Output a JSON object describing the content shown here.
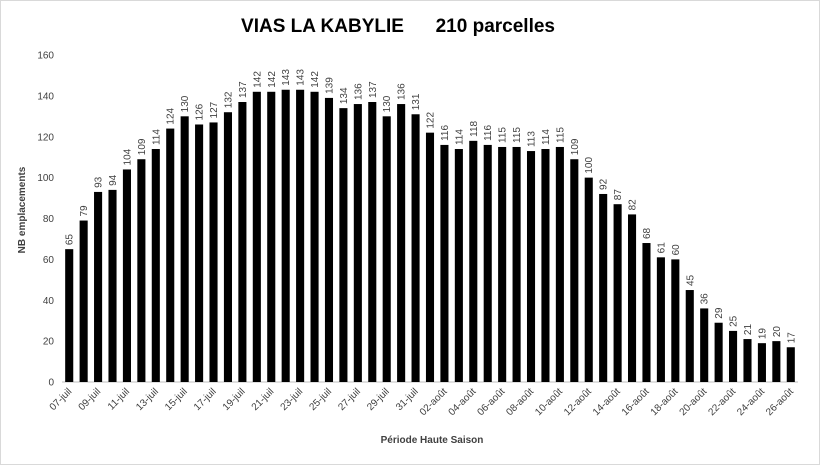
{
  "chart_data": {
    "type": "bar",
    "title": "VIAS LA KABYLIE      210 parcelles",
    "x_label": "Période Haute Saison",
    "y_label": "NB emplacements",
    "categories": [
      "07-juil",
      null,
      "09-juil",
      null,
      "11-juil",
      null,
      "13-juil",
      null,
      "15-juil",
      null,
      "17-juil",
      null,
      "19-juil",
      null,
      "21-juil",
      null,
      "23-juil",
      null,
      "25-juil",
      null,
      "27-juil",
      null,
      "29-juil",
      null,
      "31-juil",
      null,
      "02-août",
      null,
      "04-août",
      null,
      "06-août",
      null,
      "08-août",
      null,
      "10-août",
      null,
      "12-août",
      null,
      "14-août",
      null,
      "16-août",
      null,
      "18-août",
      null,
      "20-août",
      null,
      "22-août",
      null,
      "24-août",
      null,
      "26-août"
    ],
    "values": [
      65,
      79,
      93,
      94,
      104,
      109,
      114,
      124,
      130,
      126,
      127,
      132,
      137,
      142,
      142,
      143,
      143,
      142,
      139,
      134,
      136,
      137,
      130,
      136,
      131,
      122,
      116,
      114,
      118,
      116,
      115,
      115,
      113,
      114,
      115,
      109,
      100,
      92,
      87,
      82,
      68,
      61,
      60,
      45,
      36,
      29,
      25,
      21,
      19,
      20,
      17
    ],
    "color": "#000000",
    "ylim": [
      0,
      160
    ],
    "yticks": [
      0,
      20,
      40,
      60,
      80,
      100,
      120,
      140,
      160
    ],
    "grid": false
  }
}
